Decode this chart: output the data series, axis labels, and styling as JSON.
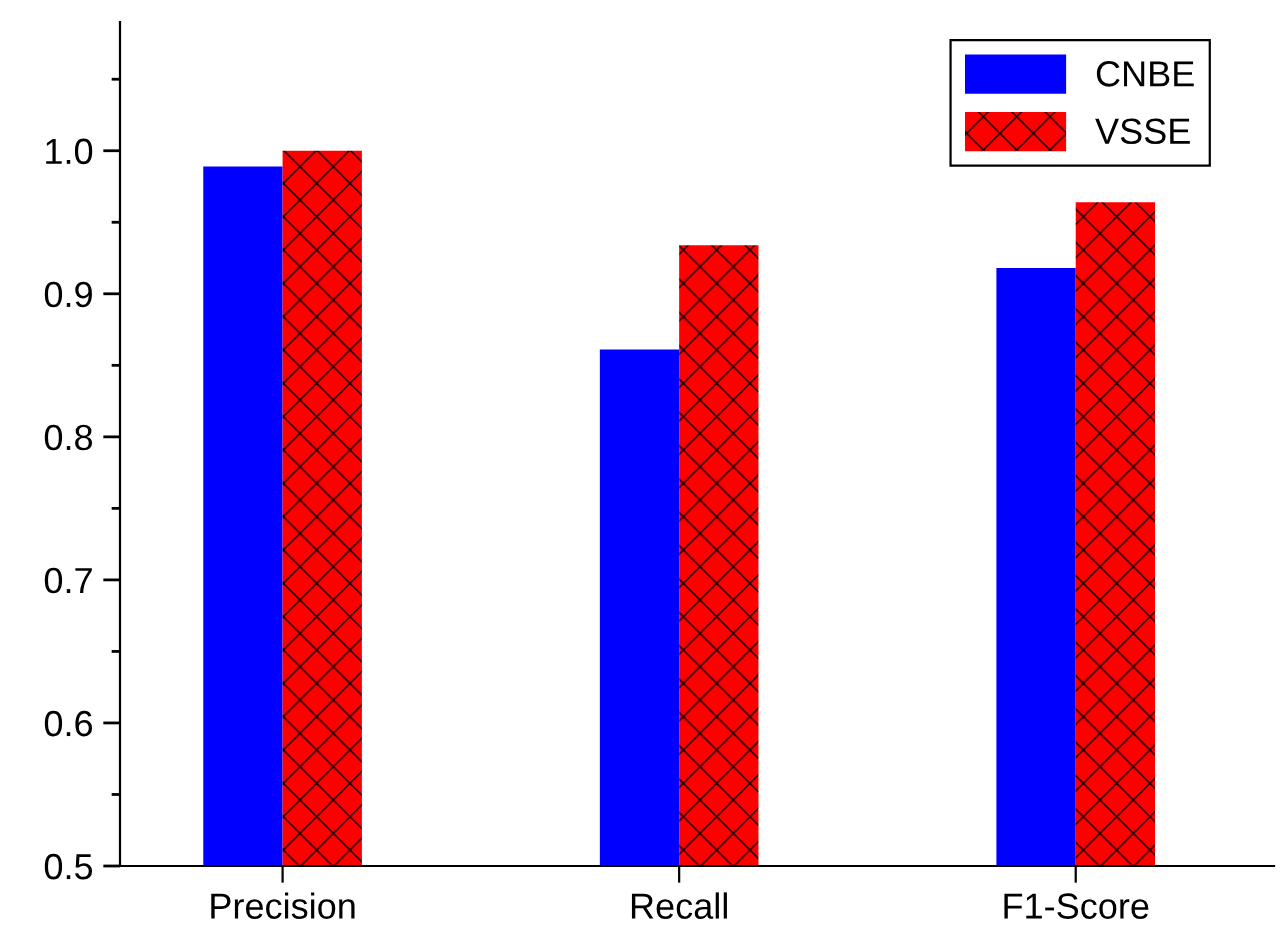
{
  "chart_data": {
    "type": "bar",
    "categories": [
      "Precision",
      "Recall",
      "F1-Score"
    ],
    "series": [
      {
        "name": "CNBE",
        "color": "#0000ff",
        "values": [
          0.989,
          0.861,
          0.918
        ]
      },
      {
        "name": "VSSE",
        "color": "#ff0000",
        "values": [
          1.0,
          0.934,
          0.964
        ]
      }
    ],
    "ylim": [
      0.5,
      1.09
    ],
    "yticks": [
      0.5,
      0.6,
      0.7,
      0.8,
      0.9,
      {
        "value": 1.0,
        "label": "1.0"
      }
    ],
    "grid": false,
    "legend": "top right"
  }
}
